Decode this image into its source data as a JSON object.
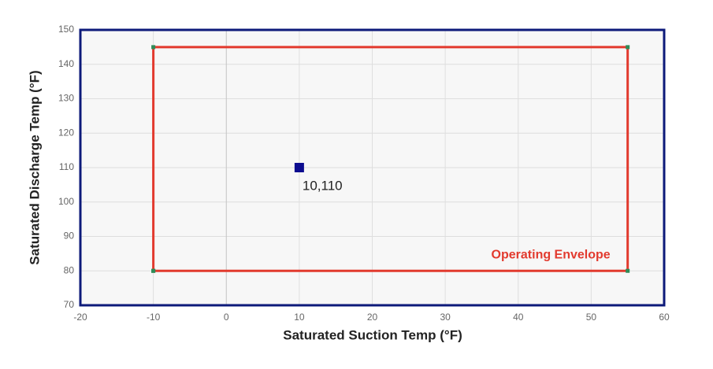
{
  "chart_data": {
    "type": "scatter",
    "x_label": "Saturated Suction Temp (°F)",
    "y_label": "Saturated Discharge Temp (°F)",
    "xlim": [
      -20,
      60
    ],
    "xticks": [
      -20,
      -10,
      0,
      10,
      20,
      30,
      40,
      50,
      60
    ],
    "ylim": [
      70,
      150
    ],
    "yticks": [
      70,
      80,
      90,
      100,
      110,
      120,
      130,
      140,
      150
    ],
    "grid": true,
    "series": [
      {
        "name": "Operating Envelope",
        "type": "line",
        "color": "#e23a2e",
        "marker_color": "#2e8b57",
        "x": [
          -10,
          55,
          55,
          -10,
          -10
        ],
        "values": [
          80,
          80,
          145,
          145,
          80
        ]
      },
      {
        "type": "marker",
        "color": "#0c0c8f",
        "x": [
          10
        ],
        "values": [
          110
        ],
        "value_labels": [
          "10,110"
        ]
      }
    ]
  }
}
